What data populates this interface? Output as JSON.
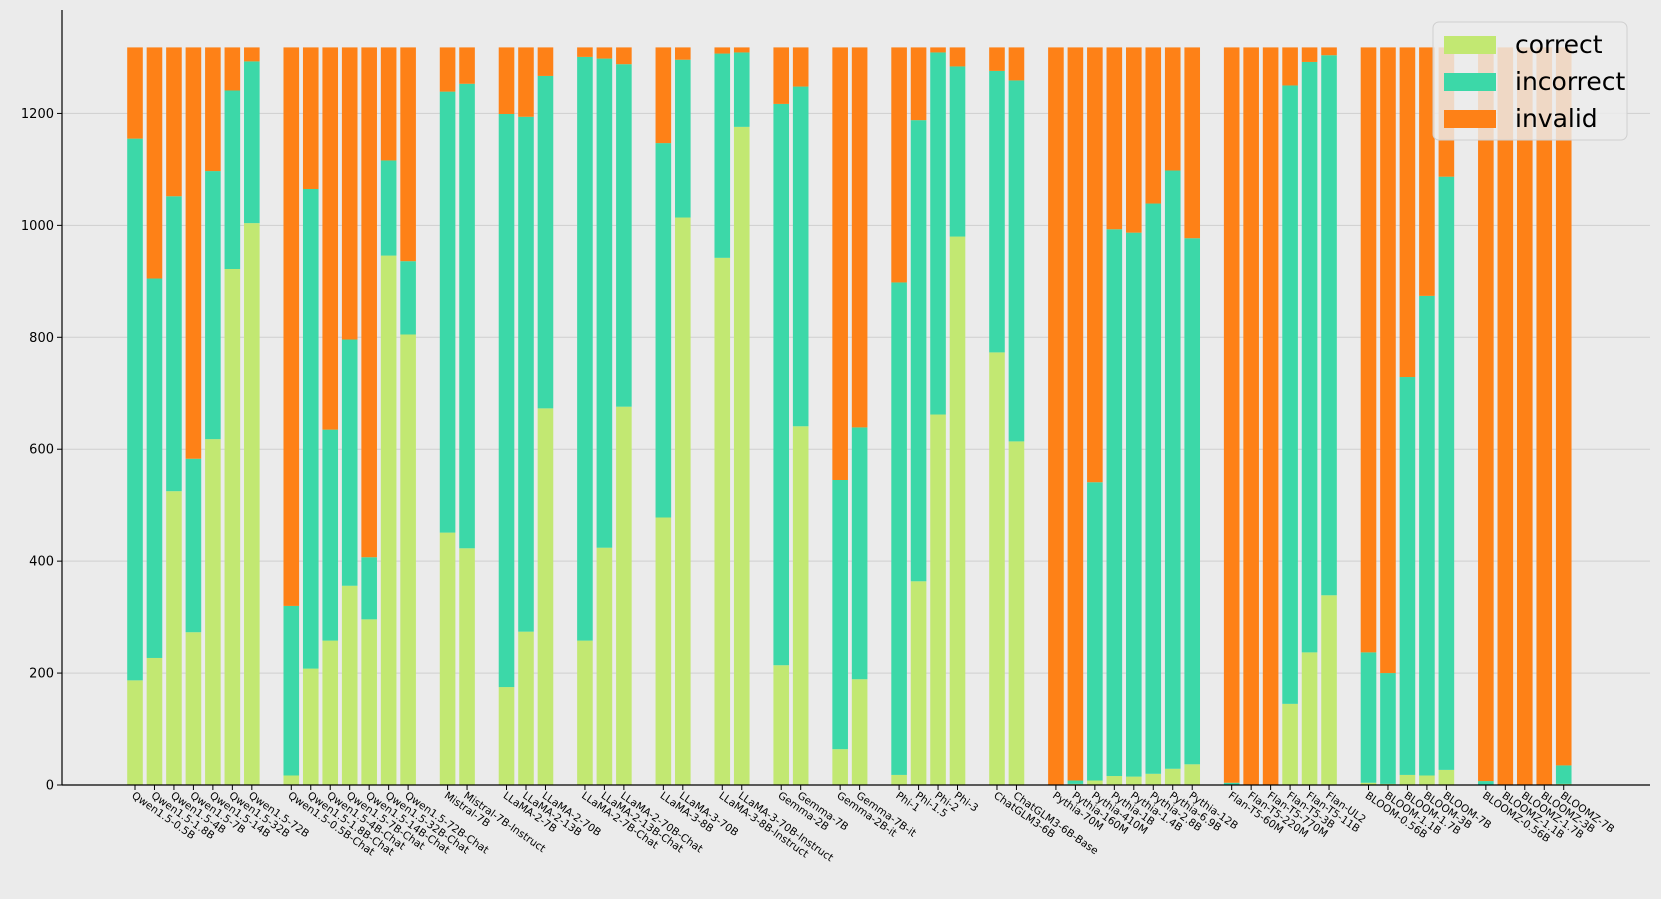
{
  "chart_data": {
    "type": "bar",
    "stacked": true,
    "ylim": [
      0,
      1320
    ],
    "yticks": [
      0,
      200,
      400,
      600,
      800,
      1000,
      1200
    ],
    "grid": "y",
    "legend_position": "top-right",
    "series": [
      {
        "name": "correct",
        "color": "#c2e872"
      },
      {
        "name": "incorrect",
        "color": "#3cd8a8"
      },
      {
        "name": "invalid",
        "color": "#fe8117"
      }
    ],
    "groups": [
      {
        "bars": [
          {
            "label": "Qwen1.5-0.5B",
            "correct": 187,
            "incorrect": 968,
            "invalid": 163
          },
          {
            "label": "Qwen1.5-1.8B",
            "correct": 227,
            "incorrect": 678,
            "invalid": 413
          },
          {
            "label": "Qwen1.5-4B",
            "correct": 525,
            "incorrect": 527,
            "invalid": 266
          },
          {
            "label": "Qwen1.5-7B",
            "correct": 273,
            "incorrect": 310,
            "invalid": 735
          },
          {
            "label": "Qwen1.5-14B",
            "correct": 618,
            "incorrect": 479,
            "invalid": 221
          },
          {
            "label": "Qwen1.5-32B",
            "correct": 922,
            "incorrect": 319,
            "invalid": 77
          },
          {
            "label": "Qwen1.5-72B",
            "correct": 1004,
            "incorrect": 289,
            "invalid": 25
          }
        ]
      },
      {
        "bars": [
          {
            "label": "Qwen1.5-0.5B-Chat",
            "correct": 17,
            "incorrect": 303,
            "invalid": 998
          },
          {
            "label": "Qwen1.5-1.8B-Chat",
            "correct": 208,
            "incorrect": 857,
            "invalid": 253
          },
          {
            "label": "Qwen1.5-4B-Chat",
            "correct": 258,
            "incorrect": 377,
            "invalid": 683
          },
          {
            "label": "Qwen1.5-7B-Chat",
            "correct": 356,
            "incorrect": 440,
            "invalid": 522
          },
          {
            "label": "Qwen1.5-14B-Chat",
            "correct": 296,
            "incorrect": 111,
            "invalid": 911
          },
          {
            "label": "Qwen1.5-32B-Chat",
            "correct": 946,
            "incorrect": 170,
            "invalid": 202
          },
          {
            "label": "Qwen1.5-72B-Chat",
            "correct": 805,
            "incorrect": 131,
            "invalid": 382
          }
        ]
      },
      {
        "bars": [
          {
            "label": "Mistral-7B",
            "correct": 451,
            "incorrect": 788,
            "invalid": 79
          },
          {
            "label": "Mistral-7B-Instruct",
            "correct": 423,
            "incorrect": 830,
            "invalid": 65
          }
        ]
      },
      {
        "bars": [
          {
            "label": "LLaMA-2-7B",
            "correct": 175,
            "incorrect": 1024,
            "invalid": 119
          },
          {
            "label": "LLaMA-2-13B",
            "correct": 274,
            "incorrect": 920,
            "invalid": 124
          },
          {
            "label": "LLaMA-2-70B",
            "correct": 673,
            "incorrect": 594,
            "invalid": 51
          }
        ]
      },
      {
        "bars": [
          {
            "label": "LLaMA-2-7B-Chat",
            "correct": 258,
            "incorrect": 1043,
            "invalid": 17
          },
          {
            "label": "LLaMA-2-13B-Chat",
            "correct": 424,
            "incorrect": 874,
            "invalid": 20
          },
          {
            "label": "LLaMA-2-70B-Chat",
            "correct": 676,
            "incorrect": 612,
            "invalid": 30
          }
        ]
      },
      {
        "bars": [
          {
            "label": "LLaMA-3-8B",
            "correct": 478,
            "incorrect": 669,
            "invalid": 171
          },
          {
            "label": "LLaMA-3-70B",
            "correct": 1014,
            "incorrect": 282,
            "invalid": 22
          }
        ]
      },
      {
        "bars": [
          {
            "label": "LLaMA-3-8B-Instruct",
            "correct": 942,
            "incorrect": 365,
            "invalid": 11
          },
          {
            "label": "LLaMA-3-70B-Instruct",
            "correct": 1176,
            "incorrect": 133,
            "invalid": 9
          }
        ]
      },
      {
        "bars": [
          {
            "label": "Gemma-2B",
            "correct": 214,
            "incorrect": 1003,
            "invalid": 101
          },
          {
            "label": "Gemma-7B",
            "correct": 641,
            "incorrect": 607,
            "invalid": 70
          }
        ]
      },
      {
        "bars": [
          {
            "label": "Gemma-2B-it",
            "correct": 64,
            "incorrect": 481,
            "invalid": 773
          },
          {
            "label": "Gemma-7B-it",
            "correct": 189,
            "incorrect": 450,
            "invalid": 679
          }
        ]
      },
      {
        "bars": [
          {
            "label": "Phi-1",
            "correct": 18,
            "incorrect": 880,
            "invalid": 420
          },
          {
            "label": "Phi-1.5",
            "correct": 364,
            "incorrect": 824,
            "invalid": 130
          },
          {
            "label": "Phi-2",
            "correct": 662,
            "incorrect": 647,
            "invalid": 9
          },
          {
            "label": "Phi-3",
            "correct": 980,
            "incorrect": 304,
            "invalid": 34
          }
        ]
      },
      {
        "bars": [
          {
            "label": "ChatGLM3-6B",
            "correct": 773,
            "incorrect": 503,
            "invalid": 42
          },
          {
            "label": "ChatGLM3-6B-Base",
            "correct": 614,
            "incorrect": 645,
            "invalid": 59
          }
        ]
      },
      {
        "bars": [
          {
            "label": "Pythia-70M",
            "correct": 0,
            "incorrect": 0,
            "invalid": 1318
          },
          {
            "label": "Pythia-160M",
            "correct": 2,
            "incorrect": 6,
            "invalid": 1310
          },
          {
            "label": "Pythia-410M",
            "correct": 8,
            "incorrect": 533,
            "invalid": 777
          },
          {
            "label": "Pythia-1B",
            "correct": 16,
            "incorrect": 977,
            "invalid": 325
          },
          {
            "label": "Pythia-1.4B",
            "correct": 15,
            "incorrect": 972,
            "invalid": 331
          },
          {
            "label": "Pythia-2.8B",
            "correct": 20,
            "incorrect": 1019,
            "invalid": 279
          },
          {
            "label": "Pythia-6.9B",
            "correct": 29,
            "incorrect": 1069,
            "invalid": 220
          },
          {
            "label": "Pythia-12B",
            "correct": 37,
            "incorrect": 940,
            "invalid": 341
          }
        ]
      },
      {
        "bars": [
          {
            "label": "Flan-T5-60M",
            "correct": 0,
            "incorrect": 4,
            "invalid": 1314
          },
          {
            "label": "Flan-T5-220M",
            "correct": 0,
            "incorrect": 0,
            "invalid": 1318
          },
          {
            "label": "Flan-T5-770M",
            "correct": 0,
            "incorrect": 0,
            "invalid": 1318
          },
          {
            "label": "Flan-T5-3B",
            "correct": 145,
            "incorrect": 1105,
            "invalid": 68
          },
          {
            "label": "Flan-T5-11B",
            "correct": 237,
            "incorrect": 1055,
            "invalid": 26
          },
          {
            "label": "Flan-UL2",
            "correct": 339,
            "incorrect": 965,
            "invalid": 14
          }
        ]
      },
      {
        "bars": [
          {
            "label": "BLOOM-0.56B",
            "correct": 4,
            "incorrect": 233,
            "invalid": 1081
          },
          {
            "label": "BLOOM-1.1B",
            "correct": 2,
            "incorrect": 198,
            "invalid": 1118
          },
          {
            "label": "BLOOM-1.7B",
            "correct": 18,
            "incorrect": 711,
            "invalid": 589
          },
          {
            "label": "BLOOM-3B",
            "correct": 17,
            "incorrect": 857,
            "invalid": 444
          },
          {
            "label": "BLOOM-7B",
            "correct": 27,
            "incorrect": 1060,
            "invalid": 231
          }
        ]
      },
      {
        "bars": [
          {
            "label": "BLOOMZ-0.56B",
            "correct": 0,
            "incorrect": 7,
            "invalid": 1311
          },
          {
            "label": "BLOOMZ-1.1B",
            "correct": 0,
            "incorrect": 0,
            "invalid": 1318
          },
          {
            "label": "BLOOMZ-1.7B",
            "correct": 0,
            "incorrect": 0,
            "invalid": 1318
          },
          {
            "label": "BLOOMZ-3B",
            "correct": 0,
            "incorrect": 0,
            "invalid": 1318
          },
          {
            "label": "BLOOMZ-7B",
            "correct": 2,
            "incorrect": 33,
            "invalid": 1283
          }
        ]
      }
    ]
  }
}
